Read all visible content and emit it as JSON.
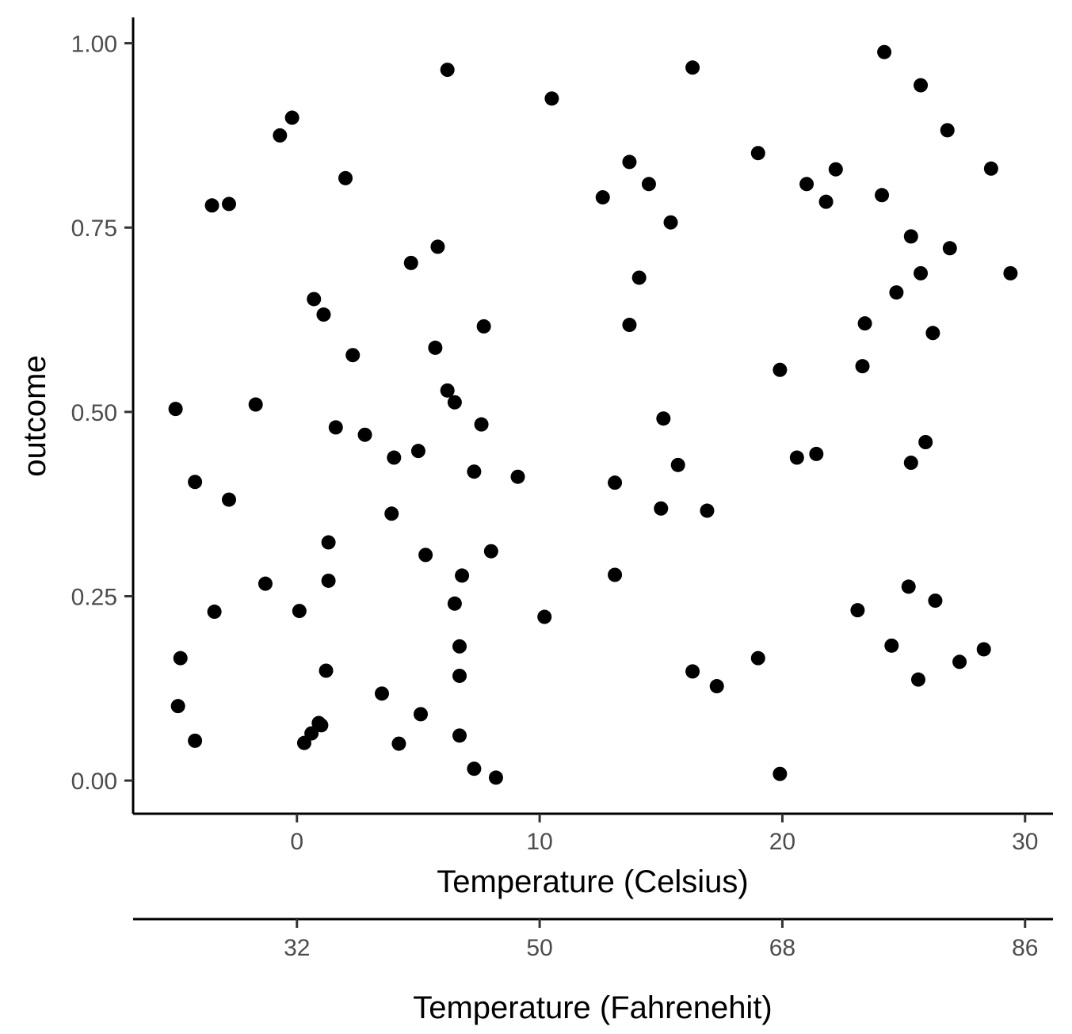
{
  "chart_data": {
    "type": "scatter",
    "title": "",
    "xlabel": "Temperature (Celsius)",
    "x2label": "Temperature (Fahrenehit)",
    "ylabel": "outcome",
    "xlim": [
      -6.75,
      31.15
    ],
    "ylim": [
      -0.045,
      1.035
    ],
    "xticks": [
      0,
      10,
      20,
      30
    ],
    "xtick_labels": [
      "0",
      "10",
      "20",
      "30"
    ],
    "x2ticks": [
      0,
      10,
      20,
      30
    ],
    "x2tick_labels": [
      "32",
      "50",
      "68",
      "86"
    ],
    "yticks": [
      0,
      0.25,
      0.5,
      0.75,
      1.0
    ],
    "ytick_labels": [
      "0.00",
      "0.25",
      "0.50",
      "0.75",
      "1.00"
    ],
    "grid": false,
    "legend": "none",
    "color": "#000000",
    "points": [
      {
        "x": 6.2,
        "y": 0.964
      },
      {
        "x": 16.3,
        "y": 0.967
      },
      {
        "x": 24.2,
        "y": 0.988
      },
      {
        "x": 25.7,
        "y": 0.943
      },
      {
        "x": 10.5,
        "y": 0.925
      },
      {
        "x": -0.2,
        "y": 0.899
      },
      {
        "x": -0.7,
        "y": 0.875
      },
      {
        "x": 26.8,
        "y": 0.882
      },
      {
        "x": 19.0,
        "y": 0.851
      },
      {
        "x": 13.7,
        "y": 0.839
      },
      {
        "x": 22.2,
        "y": 0.829
      },
      {
        "x": 28.6,
        "y": 0.83
      },
      {
        "x": 2.0,
        "y": 0.817
      },
      {
        "x": 14.5,
        "y": 0.809
      },
      {
        "x": 21.0,
        "y": 0.809
      },
      {
        "x": 24.1,
        "y": 0.794
      },
      {
        "x": 12.6,
        "y": 0.791
      },
      {
        "x": 21.8,
        "y": 0.785
      },
      {
        "x": -3.5,
        "y": 0.78
      },
      {
        "x": -2.8,
        "y": 0.782
      },
      {
        "x": 15.4,
        "y": 0.757
      },
      {
        "x": 25.3,
        "y": 0.738
      },
      {
        "x": 5.8,
        "y": 0.724
      },
      {
        "x": 26.9,
        "y": 0.722
      },
      {
        "x": 4.7,
        "y": 0.702
      },
      {
        "x": 29.4,
        "y": 0.688
      },
      {
        "x": 25.7,
        "y": 0.688
      },
      {
        "x": 14.1,
        "y": 0.682
      },
      {
        "x": 24.7,
        "y": 0.662
      },
      {
        "x": 0.7,
        "y": 0.653
      },
      {
        "x": 1.1,
        "y": 0.632
      },
      {
        "x": 23.4,
        "y": 0.62
      },
      {
        "x": 13.7,
        "y": 0.618
      },
      {
        "x": 7.7,
        "y": 0.616
      },
      {
        "x": 26.2,
        "y": 0.607
      },
      {
        "x": 5.7,
        "y": 0.587
      },
      {
        "x": 2.3,
        "y": 0.577
      },
      {
        "x": 23.3,
        "y": 0.562
      },
      {
        "x": 19.9,
        "y": 0.557
      },
      {
        "x": 6.2,
        "y": 0.529
      },
      {
        "x": 6.5,
        "y": 0.513
      },
      {
        "x": -1.7,
        "y": 0.51
      },
      {
        "x": -5.0,
        "y": 0.504
      },
      {
        "x": 15.1,
        "y": 0.491
      },
      {
        "x": 7.6,
        "y": 0.483
      },
      {
        "x": 1.6,
        "y": 0.479
      },
      {
        "x": 2.8,
        "y": 0.469
      },
      {
        "x": 25.9,
        "y": 0.459
      },
      {
        "x": 5.0,
        "y": 0.447
      },
      {
        "x": 21.4,
        "y": 0.443
      },
      {
        "x": 20.6,
        "y": 0.438
      },
      {
        "x": 4.0,
        "y": 0.438
      },
      {
        "x": 25.3,
        "y": 0.431
      },
      {
        "x": 15.7,
        "y": 0.428
      },
      {
        "x": 7.3,
        "y": 0.419
      },
      {
        "x": 9.1,
        "y": 0.412
      },
      {
        "x": -4.2,
        "y": 0.405
      },
      {
        "x": 13.1,
        "y": 0.404
      },
      {
        "x": -2.8,
        "y": 0.381
      },
      {
        "x": 15.0,
        "y": 0.369
      },
      {
        "x": 16.9,
        "y": 0.366
      },
      {
        "x": 3.9,
        "y": 0.362
      },
      {
        "x": 1.3,
        "y": 0.323
      },
      {
        "x": 8.0,
        "y": 0.311
      },
      {
        "x": 5.3,
        "y": 0.306
      },
      {
        "x": 6.8,
        "y": 0.278
      },
      {
        "x": 13.1,
        "y": 0.279
      },
      {
        "x": 1.3,
        "y": 0.271
      },
      {
        "x": -1.3,
        "y": 0.267
      },
      {
        "x": 25.2,
        "y": 0.263
      },
      {
        "x": 26.3,
        "y": 0.244
      },
      {
        "x": 6.5,
        "y": 0.24
      },
      {
        "x": 23.1,
        "y": 0.231
      },
      {
        "x": 0.1,
        "y": 0.23
      },
      {
        "x": -3.4,
        "y": 0.229
      },
      {
        "x": 10.2,
        "y": 0.222
      },
      {
        "x": 24.5,
        "y": 0.183
      },
      {
        "x": 6.7,
        "y": 0.182
      },
      {
        "x": 28.3,
        "y": 0.178
      },
      {
        "x": -4.8,
        "y": 0.166
      },
      {
        "x": 19.0,
        "y": 0.166
      },
      {
        "x": 27.3,
        "y": 0.161
      },
      {
        "x": 1.2,
        "y": 0.149
      },
      {
        "x": 16.3,
        "y": 0.148
      },
      {
        "x": 6.7,
        "y": 0.142
      },
      {
        "x": 25.6,
        "y": 0.137
      },
      {
        "x": 17.3,
        "y": 0.128
      },
      {
        "x": 3.5,
        "y": 0.118
      },
      {
        "x": -4.9,
        "y": 0.101
      },
      {
        "x": 5.1,
        "y": 0.09
      },
      {
        "x": 0.9,
        "y": 0.078
      },
      {
        "x": 1.0,
        "y": 0.075
      },
      {
        "x": 0.6,
        "y": 0.064
      },
      {
        "x": 6.7,
        "y": 0.061
      },
      {
        "x": -4.2,
        "y": 0.054
      },
      {
        "x": 0.3,
        "y": 0.051
      },
      {
        "x": 4.2,
        "y": 0.05
      },
      {
        "x": 7.3,
        "y": 0.016
      },
      {
        "x": 8.2,
        "y": 0.004
      },
      {
        "x": 19.9,
        "y": 0.009
      }
    ]
  }
}
